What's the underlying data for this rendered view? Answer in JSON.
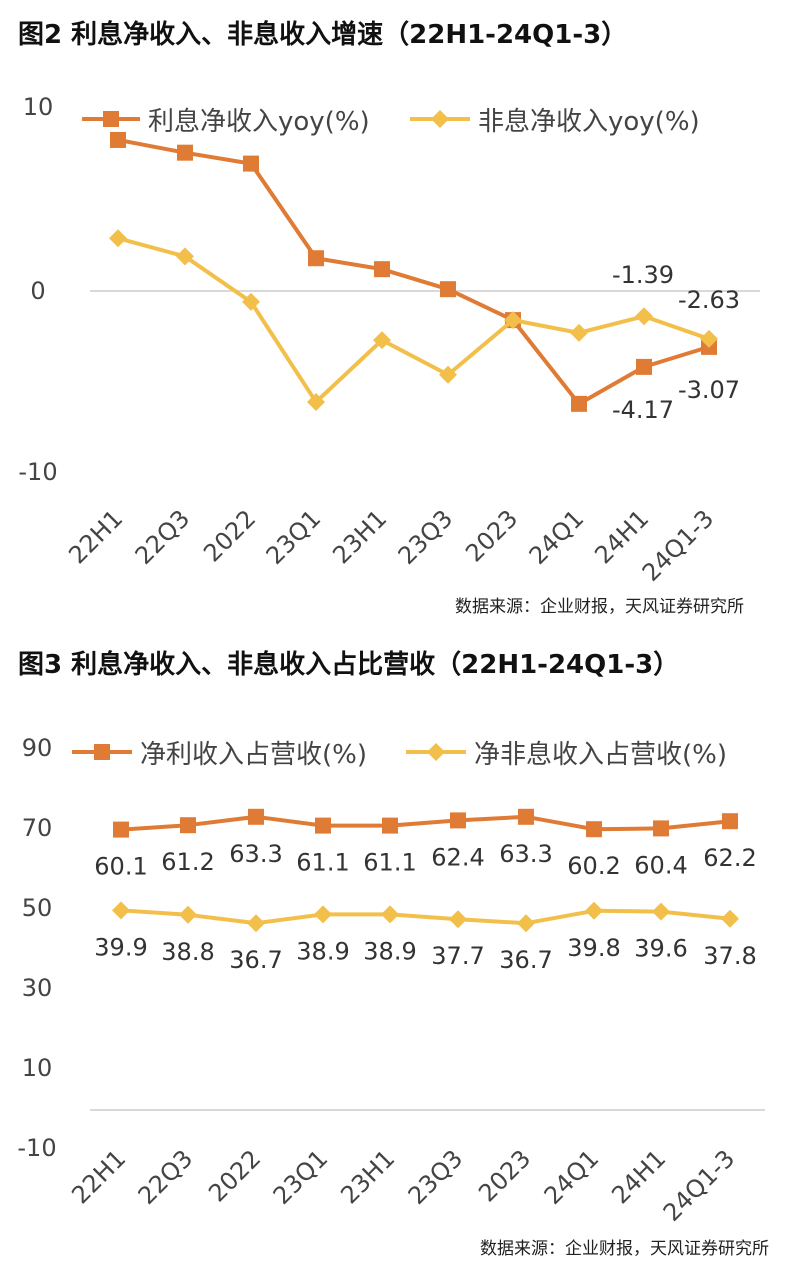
{
  "figures": [
    {
      "title": "图2  利息净收入、非息收入增速（22H1-24Q1-3）",
      "source": "数据来源：企业财报，天风证券研究所"
    },
    {
      "title": "图3  利息净收入、非息收入占比营收（22H1-24Q1-3）",
      "source": "数据来源：企业财报，天风证券研究所"
    }
  ],
  "colors": {
    "orange": "#E07B35",
    "yellow": "#F2C04A",
    "grid": "#D9D9D9"
  },
  "chart_data": [
    {
      "type": "line",
      "title": "图2  利息净收入、非息收入增速（22H1-24Q1-3）",
      "categories": [
        "22H1",
        "22Q3",
        "2022",
        "23Q1",
        "23H1",
        "23Q3",
        "2023",
        "24Q1",
        "24H1",
        "24Q1-3"
      ],
      "y_ticks": [
        "10",
        "0",
        "-10"
      ],
      "ylim": [
        -10,
        10
      ],
      "legend_position": "top",
      "series": [
        {
          "name": "利息净收入yoy(%)",
          "marker": "square",
          "color": "#E07B35",
          "values": [
            8.3,
            7.6,
            7.0,
            1.8,
            1.2,
            0.1,
            -1.6,
            -6.2,
            -4.17,
            -3.07
          ],
          "labels": [
            "",
            "",
            "",
            "",
            "",
            "",
            "",
            "",
            "-4.17",
            "-3.07"
          ]
        },
        {
          "name": "非息净收入yoy(%)",
          "marker": "diamond",
          "color": "#F2C04A",
          "values": [
            2.9,
            1.9,
            -0.6,
            -6.1,
            -2.7,
            -4.6,
            -1.6,
            -2.3,
            -1.39,
            -2.63
          ],
          "labels": [
            "",
            "",
            "",
            "",
            "",
            "",
            "",
            "",
            "-1.39",
            "-2.63"
          ]
        }
      ]
    },
    {
      "type": "line",
      "title": "图3  利息净收入、非息收入占比营收（22H1-24Q1-3）",
      "categories": [
        "22H1",
        "22Q3",
        "2022",
        "23Q1",
        "23H1",
        "23Q3",
        "2023",
        "24Q1",
        "24H1",
        "24Q1-3"
      ],
      "y_ticks": [
        "90",
        "70",
        "50",
        "30",
        "10",
        "-10"
      ],
      "ylim": [
        -10,
        90
      ],
      "legend_position": "top",
      "series": [
        {
          "name": "净利收入占营收(%)",
          "marker": "square",
          "color": "#E07B35",
          "values": [
            60.1,
            61.2,
            63.3,
            61.1,
            61.1,
            62.4,
            63.3,
            60.2,
            60.4,
            62.2
          ],
          "labels": [
            "60.1",
            "61.2",
            "63.3",
            "61.1",
            "61.1",
            "62.4",
            "63.3",
            "60.2",
            "60.4",
            "62.2"
          ]
        },
        {
          "name": "净非息收入占营收(%)",
          "marker": "diamond",
          "color": "#F2C04A",
          "values": [
            39.9,
            38.8,
            36.7,
            38.9,
            38.9,
            37.7,
            36.7,
            39.8,
            39.6,
            37.8
          ],
          "labels": [
            "39.9",
            "38.8",
            "36.7",
            "38.9",
            "38.9",
            "37.7",
            "36.7",
            "39.8",
            "39.6",
            "37.8"
          ]
        }
      ]
    }
  ]
}
